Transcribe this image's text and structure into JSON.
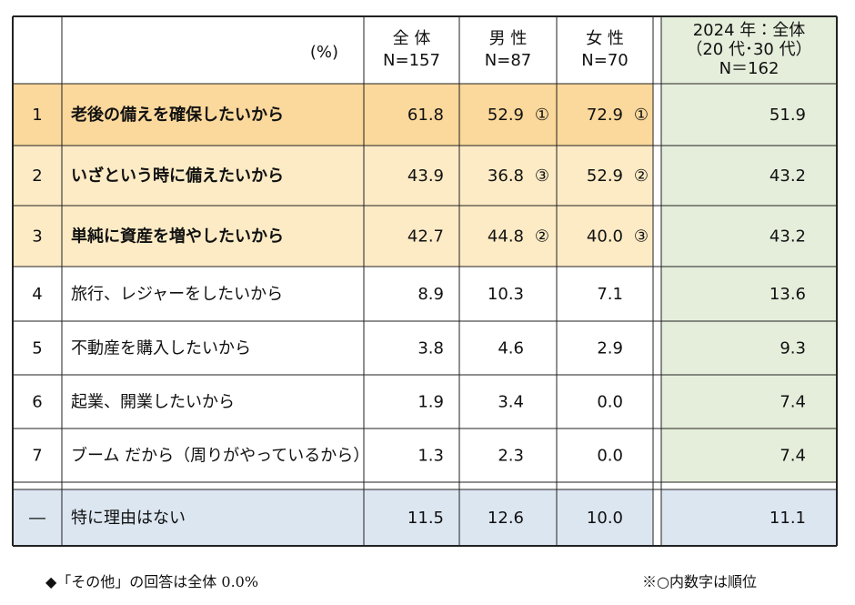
{
  "table": {
    "header": {
      "unit": "(%)",
      "total": [
        "全 体",
        "N=157"
      ],
      "male": [
        "男 性",
        "N=87"
      ],
      "female": [
        "女 性",
        "N=70"
      ],
      "y2024": [
        "2024 年：全体",
        "（20 代･30 代）",
        "N＝162"
      ]
    },
    "rows": [
      {
        "no": "1",
        "reason": "老後の備えを確保したいから",
        "total": "61.8",
        "male": "52.9",
        "male_rank": "①",
        "female": "72.9",
        "female_rank": "①",
        "y2024": "51.9"
      },
      {
        "no": "2",
        "reason": "いざという時に備えたいから",
        "total": "43.9",
        "male": "36.8",
        "male_rank": "③",
        "female": "52.9",
        "female_rank": "②",
        "y2024": "43.2"
      },
      {
        "no": "3",
        "reason": "単純に資産を増やしたいから",
        "total": "42.7",
        "male": "44.8",
        "male_rank": "②",
        "female": "40.0",
        "female_rank": "③",
        "y2024": "43.2"
      },
      {
        "no": "4",
        "reason": "旅行、レジャーをしたいから",
        "total": "8.9",
        "male": "10.3",
        "female": "7.1",
        "y2024": "13.6"
      },
      {
        "no": "5",
        "reason": "不動産を購入したいから",
        "total": "3.8",
        "male": "4.6",
        "female": "2.9",
        "y2024": "9.3"
      },
      {
        "no": "6",
        "reason": "起業、開業したいから",
        "total": "1.9",
        "male": "3.4",
        "female": "0.0",
        "y2024": "7.4"
      },
      {
        "no": "7",
        "reason": "ブーム だから（周りがやっているから）",
        "total": "1.3",
        "male": "2.3",
        "female": "0.0",
        "y2024": "7.4"
      },
      {
        "no": "―",
        "reason": "特に理由はない",
        "total": "11.5",
        "male": "12.6",
        "female": "10.0",
        "y2024": "11.1"
      }
    ]
  },
  "footnotes": {
    "left": "◆「その他」の回答は全体 0.0%",
    "right": "※○内数字は順位"
  }
}
